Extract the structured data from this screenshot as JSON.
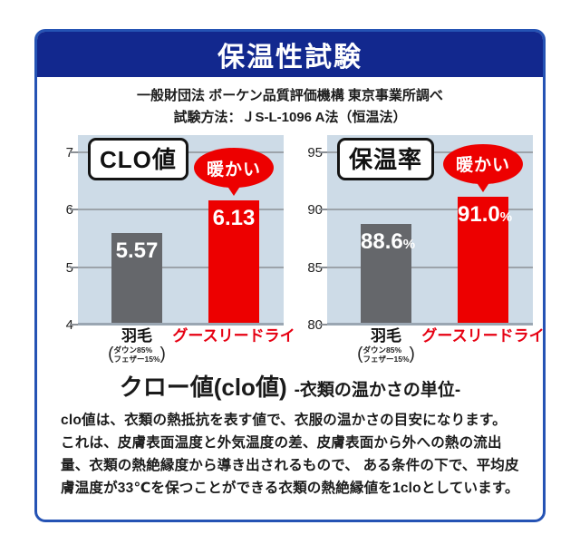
{
  "header": {
    "title": "保温性試験"
  },
  "subtitle": {
    "line1": "一般財団法 ボーケン品質評価機構 東京事業所調べ",
    "line2": "試験方法：ＪS-L-1096 A法（恒温法）"
  },
  "colors": {
    "navy_header": "#12288e",
    "card_border": "#2553b4",
    "plot_background": "#cddbe7",
    "gridline": "#8b9096",
    "bar_gray": "#65676b",
    "bar_red": "#ed0000",
    "label_red": "#e60012",
    "text_dark": "#1c1c1c"
  },
  "chart_data": [
    {
      "type": "bar",
      "title": "CLO値",
      "categories": [
        "羽毛",
        "グースリードライ"
      ],
      "category_notes": [
        [
          "ダウン85%",
          "フェザー15%"
        ],
        []
      ],
      "category_colors": [
        "#111111",
        "#e60012"
      ],
      "values": [
        5.57,
        6.13
      ],
      "value_labels": [
        "5.57",
        "6.13"
      ],
      "value_suffix": "",
      "bar_colors": [
        "#65676b",
        "#ed0000"
      ],
      "ylim": [
        4,
        7
      ],
      "yticks": [
        4,
        5,
        6,
        7
      ],
      "annotation": "暖かい",
      "annotation_color": "#ed0000",
      "grid": true,
      "legend": "none",
      "xlabel": "",
      "ylabel": ""
    },
    {
      "type": "bar",
      "title": "保温率",
      "categories": [
        "羽毛",
        "グースリードライ"
      ],
      "category_notes": [
        [
          "ダウン85%",
          "フェザー15%"
        ],
        []
      ],
      "category_colors": [
        "#111111",
        "#e60012"
      ],
      "values": [
        88.6,
        91.0
      ],
      "value_labels": [
        "88.6",
        "91.0"
      ],
      "value_suffix": "%",
      "bar_colors": [
        "#65676b",
        "#ed0000"
      ],
      "ylim": [
        80,
        95
      ],
      "yticks": [
        80,
        85,
        90,
        95
      ],
      "annotation": "暖かい",
      "annotation_color": "#ed0000",
      "grid": true,
      "legend": "none",
      "xlabel": "",
      "ylabel": ""
    }
  ],
  "clo_section": {
    "heading_main": "クロー値(clo値)",
    "heading_sub": "-衣類の温かさの単位-",
    "body": "clo値は、衣類の熱抵抗を表す値で、衣服の温かさの目安になります。 これは、皮膚表面温度と外気温度の差、皮膚表面から外への熱の流出量、衣類の熱絶縁度から導き出されるもので、 ある条件の下で、平均皮膚温度が33℃を保つことができる衣類の熱絶縁値を1cloとしています。"
  }
}
